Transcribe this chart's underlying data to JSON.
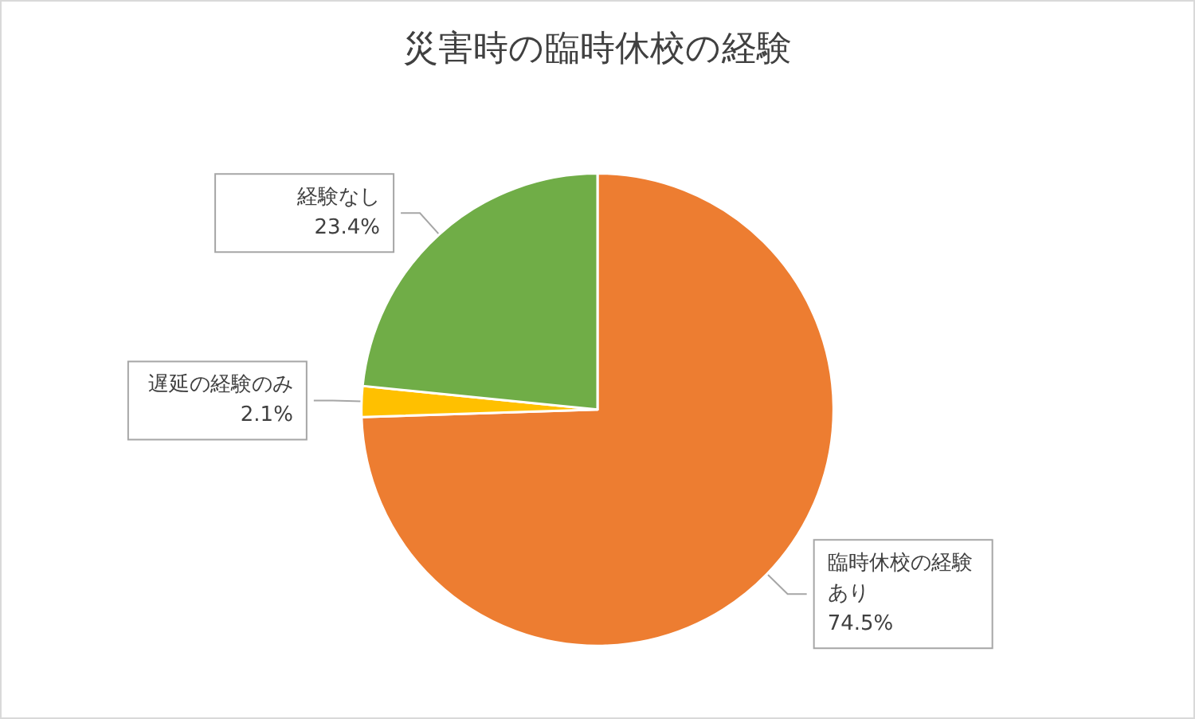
{
  "chart_data": {
    "type": "pie",
    "title": "災害時の臨時休校の経験",
    "categories": [
      "臨時休校の経験あり",
      "遅延の経験のみ",
      "経験なし"
    ],
    "values": [
      74.5,
      2.1,
      23.4
    ],
    "colors": [
      "#ed7d31",
      "#ffc000",
      "#70ad47"
    ],
    "value_labels": [
      "74.5%",
      "2.1%",
      "23.4%"
    ],
    "legend": false
  }
}
